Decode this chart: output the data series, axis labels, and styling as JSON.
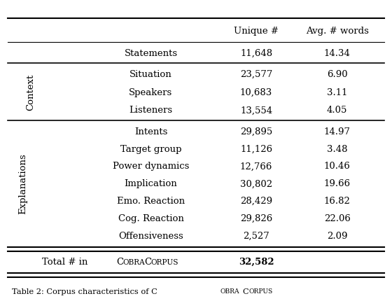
{
  "context_rows": [
    [
      "Situation",
      "23,577",
      "6.90"
    ],
    [
      "Speakers",
      "10,683",
      "3.11"
    ],
    [
      "Listeners",
      "13,554",
      "4.05"
    ]
  ],
  "explanations_rows": [
    [
      "Intents",
      "29,895",
      "14.97"
    ],
    [
      "Target group",
      "11,126",
      "3.48"
    ],
    [
      "Power dynamics",
      "12,766",
      "10.46"
    ],
    [
      "Implication",
      "30,802",
      "19.66"
    ],
    [
      "Emo. Reaction",
      "28,429",
      "16.82"
    ],
    [
      "Cog. Reaction",
      "29,826",
      "22.06"
    ],
    [
      "Offensiveness",
      "2,527",
      "2.09"
    ]
  ],
  "bg_color": "#ffffff"
}
